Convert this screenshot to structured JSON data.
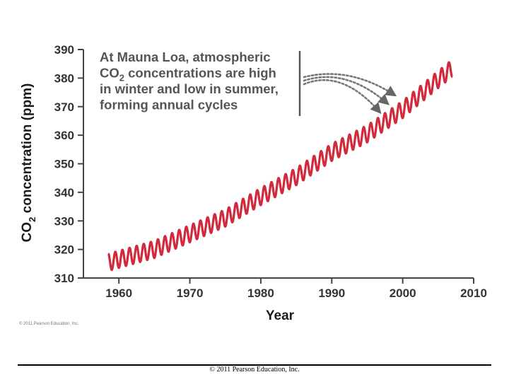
{
  "chart_data": {
    "type": "line",
    "title": "",
    "xlabel": "Year",
    "ylabel_parts": [
      "CO",
      "2",
      " concentration (ppm)"
    ],
    "xlim": [
      1955,
      2010
    ],
    "ylim": [
      310,
      390
    ],
    "x_ticks": [
      1960,
      1970,
      1980,
      1990,
      2000,
      2010
    ],
    "y_ticks": [
      310,
      320,
      330,
      340,
      350,
      360,
      370,
      380,
      390
    ],
    "grid": false,
    "series": [
      {
        "name": "Mauna Loa CO2",
        "color": "#d12a3c",
        "trend": {
          "x": [
            1958.5,
            1965,
            1970,
            1975,
            1980,
            1985,
            1990,
            1995,
            2000,
            2005,
            2007
          ],
          "y": [
            315.5,
            320,
            325.5,
            331,
            338.5,
            345.5,
            354,
            360.5,
            369,
            379.5,
            383.5
          ]
        },
        "seasonal_amplitude": 3,
        "cycles_per_year": 1
      }
    ],
    "annotation": {
      "lines": [
        [
          "At Mauna Loa, atmospheric"
        ],
        [
          "CO",
          "2",
          " concentrations are high"
        ],
        [
          "in winter and low in summer,"
        ],
        [
          "forming annual cycles"
        ]
      ],
      "arrow_targets": [
        {
          "x": 1996.8,
          "y": 368
        },
        {
          "x": 1997.9,
          "y": 371
        },
        {
          "x": 1998.9,
          "y": 374
        }
      ]
    }
  },
  "credit_small": "© 2011 Pearson Education, Inc.",
  "footer": "© 2011 Pearson Education, Inc."
}
